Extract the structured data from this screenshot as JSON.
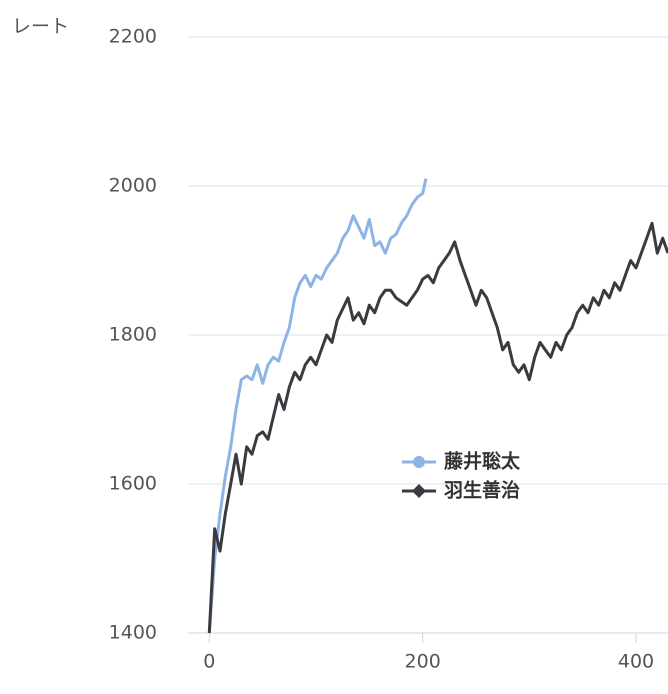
{
  "chart_data": {
    "type": "line",
    "y_label": "レート",
    "xlim": [
      -20,
      430
    ],
    "xticks": [
      0,
      200,
      400
    ],
    "ylim": [
      1400,
      2200
    ],
    "yticks": [
      1400,
      1600,
      1800,
      2000,
      2200
    ],
    "grid": true,
    "legend_position": "center",
    "series": [
      {
        "name": "藤井聡太",
        "color": "#8db4e6",
        "marker": "circle",
        "x": [
          0,
          5,
          10,
          15,
          20,
          25,
          30,
          35,
          40,
          45,
          50,
          55,
          60,
          65,
          70,
          75,
          80,
          85,
          90,
          95,
          100,
          105,
          110,
          115,
          120,
          125,
          130,
          135,
          140,
          145,
          150,
          155,
          160,
          165,
          170,
          175,
          180,
          185,
          190,
          195,
          200,
          203
        ],
        "values": [
          1400,
          1500,
          1560,
          1610,
          1650,
          1700,
          1740,
          1745,
          1740,
          1760,
          1735,
          1760,
          1770,
          1765,
          1790,
          1810,
          1850,
          1870,
          1880,
          1865,
          1880,
          1875,
          1890,
          1900,
          1910,
          1930,
          1940,
          1960,
          1945,
          1930,
          1955,
          1920,
          1925,
          1910,
          1930,
          1935,
          1950,
          1960,
          1975,
          1985,
          1990,
          2010
        ]
      },
      {
        "name": "羽生善治",
        "color": "#3a3a40",
        "marker": "diamond",
        "x": [
          0,
          5,
          10,
          15,
          20,
          25,
          30,
          35,
          40,
          45,
          50,
          55,
          60,
          65,
          70,
          75,
          80,
          85,
          90,
          95,
          100,
          105,
          110,
          115,
          120,
          125,
          130,
          135,
          140,
          145,
          150,
          155,
          160,
          165,
          170,
          175,
          180,
          185,
          190,
          195,
          200,
          205,
          210,
          215,
          220,
          225,
          230,
          235,
          240,
          245,
          250,
          255,
          260,
          265,
          270,
          275,
          280,
          285,
          290,
          295,
          300,
          305,
          310,
          315,
          320,
          325,
          330,
          335,
          340,
          345,
          350,
          355,
          360,
          365,
          370,
          375,
          380,
          385,
          390,
          395,
          400,
          405,
          410,
          415,
          420,
          425,
          430
        ],
        "values": [
          1400,
          1540,
          1510,
          1560,
          1600,
          1640,
          1600,
          1650,
          1640,
          1665,
          1670,
          1660,
          1690,
          1720,
          1700,
          1730,
          1750,
          1740,
          1760,
          1770,
          1760,
          1780,
          1800,
          1790,
          1820,
          1835,
          1850,
          1820,
          1830,
          1815,
          1840,
          1830,
          1850,
          1860,
          1860,
          1850,
          1845,
          1840,
          1850,
          1860,
          1875,
          1880,
          1870,
          1890,
          1900,
          1910,
          1925,
          1900,
          1880,
          1860,
          1840,
          1860,
          1850,
          1830,
          1810,
          1780,
          1790,
          1760,
          1750,
          1760,
          1740,
          1770,
          1790,
          1780,
          1770,
          1790,
          1780,
          1800,
          1810,
          1830,
          1840,
          1830,
          1850,
          1840,
          1860,
          1850,
          1870,
          1860,
          1880,
          1900,
          1890,
          1910,
          1930,
          1950,
          1910,
          1930,
          1910
        ]
      }
    ]
  }
}
